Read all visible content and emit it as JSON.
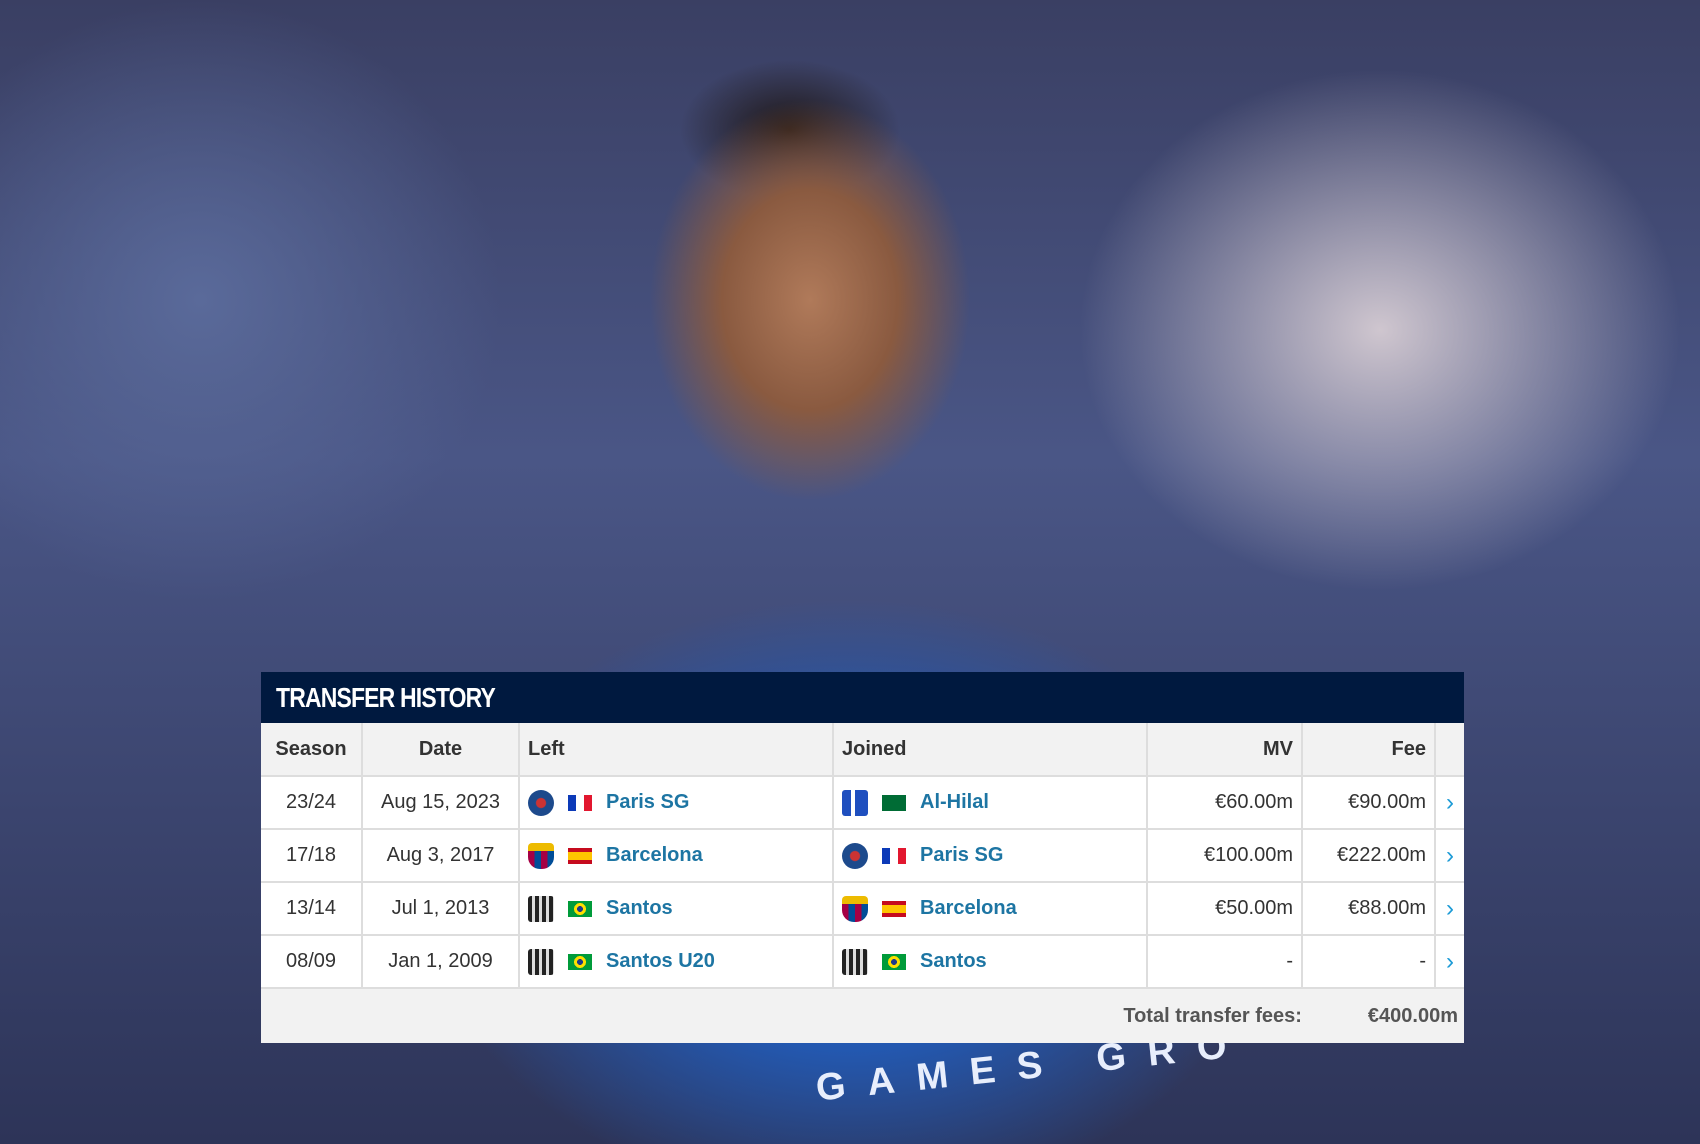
{
  "background": {
    "jersey_text": "GAMES GRO"
  },
  "transfer_history": {
    "title": "TRANSFER HISTORY",
    "columns": [
      "Season",
      "Date",
      "Left",
      "Joined",
      "MV",
      "Fee"
    ],
    "rows": [
      {
        "season": "23/24",
        "date": "Aug 15, 2023",
        "left": {
          "club": "Paris SG",
          "crest": "psg",
          "flag": "fr"
        },
        "joined": {
          "club": "Al-Hilal",
          "crest": "hil",
          "flag": "sa"
        },
        "mv": "€60.00m",
        "fee": "€90.00m"
      },
      {
        "season": "17/18",
        "date": "Aug 3, 2017",
        "left": {
          "club": "Barcelona",
          "crest": "fcb",
          "flag": "es"
        },
        "joined": {
          "club": "Paris SG",
          "crest": "psg",
          "flag": "fr"
        },
        "mv": "€100.00m",
        "fee": "€222.00m"
      },
      {
        "season": "13/14",
        "date": "Jul 1, 2013",
        "left": {
          "club": "Santos",
          "crest": "san",
          "flag": "br"
        },
        "joined": {
          "club": "Barcelona",
          "crest": "fcb",
          "flag": "es"
        },
        "mv": "€50.00m",
        "fee": "€88.00m"
      },
      {
        "season": "08/09",
        "date": "Jan 1, 2009",
        "left": {
          "club": "Santos U20",
          "crest": "san",
          "flag": "br"
        },
        "joined": {
          "club": "Santos",
          "crest": "san",
          "flag": "br"
        },
        "mv": "-",
        "fee": "-"
      }
    ],
    "total_label": "Total transfer fees:",
    "total_value": "€400.00m",
    "row_icon": "chevron-right-icon",
    "accent": "#00193f",
    "link_color": "#1d75a3"
  }
}
